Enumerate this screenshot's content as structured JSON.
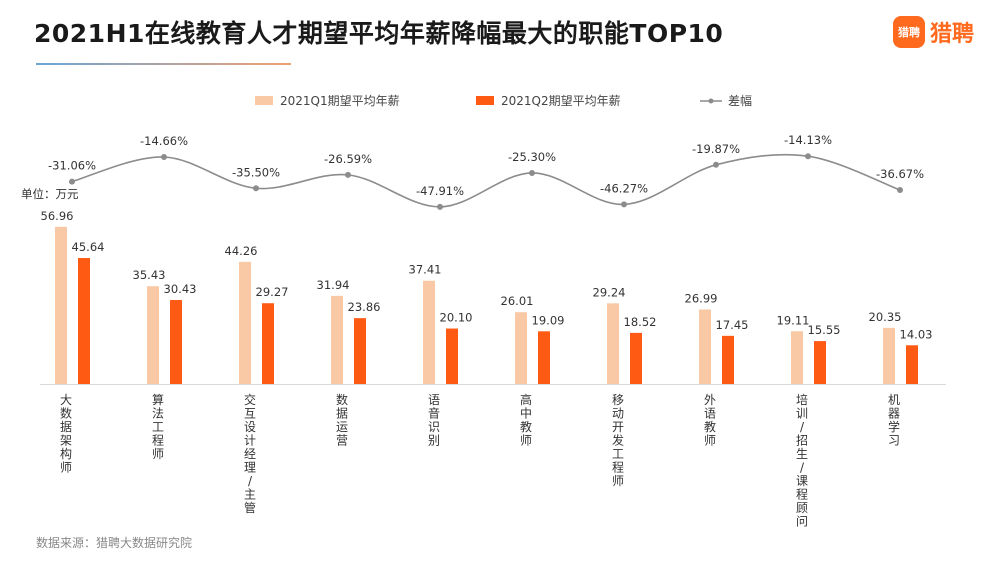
{
  "header": {
    "title": "2021H1在线教育人才期望平均年薪降幅最大的职能TOP10",
    "brand_logo_text": "猎聘",
    "brand_name": "猎聘"
  },
  "footer": {
    "source": "数据来源：猎聘大数据研究院"
  },
  "chart_data": {
    "type": "bar",
    "unit_label": "单位：万元",
    "categories": [
      "大数据架构师",
      "算法工程师",
      "交互设计经理/主管",
      "数据运营",
      "语音识别",
      "高中教师",
      "移动开发工程师",
      "外语教师",
      "培训/招生/课程顾问",
      "机器学习"
    ],
    "series": [
      {
        "name": "2021Q1期望平均年薪",
        "values": [
          56.96,
          35.43,
          44.26,
          31.94,
          37.41,
          26.01,
          29.24,
          26.99,
          19.11,
          20.35
        ],
        "color": "#f8c9a4"
      },
      {
        "name": "2021Q2期望平均年薪",
        "values": [
          45.64,
          30.43,
          29.27,
          23.86,
          20.1,
          19.09,
          18.52,
          17.45,
          15.55,
          14.03
        ],
        "color": "#ff5a14"
      }
    ],
    "line": {
      "name": "差幅",
      "type": "line",
      "values": [
        -31.06,
        -14.66,
        -35.5,
        -26.59,
        -47.91,
        -25.3,
        -46.27,
        -19.87,
        -14.13,
        -36.67
      ],
      "labels": [
        "-31.06%",
        "-14.66%",
        "-35.50%",
        "-26.59%",
        "-47.91%",
        "-25.30%",
        "-46.27%",
        "-19.87%",
        "-14.13%",
        "-36.67%"
      ],
      "color": "#8c8c8c"
    },
    "legend_position": "top-center",
    "grid": false
  }
}
